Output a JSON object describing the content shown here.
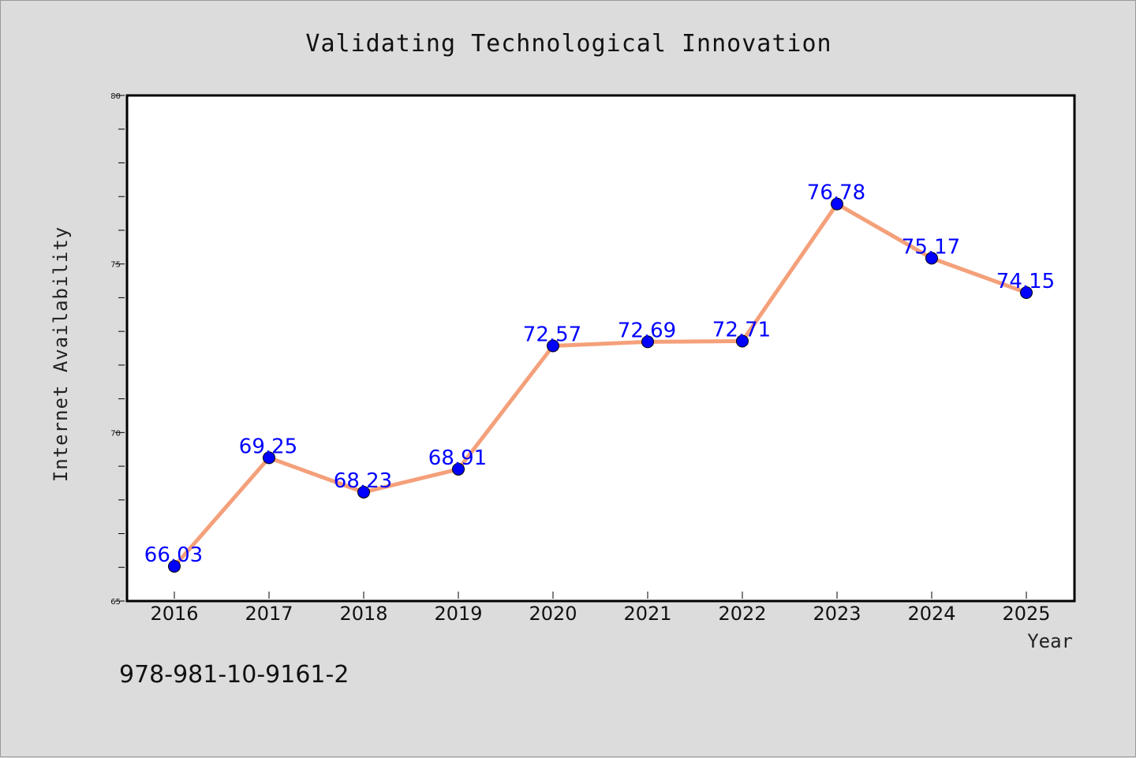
{
  "chart_data": {
    "type": "line",
    "title": "Validating Technological Innovation",
    "xlabel": "Year",
    "ylabel": "Internet Availability",
    "categories": [
      "2016",
      "2017",
      "2018",
      "2019",
      "2020",
      "2021",
      "2022",
      "2023",
      "2024",
      "2025"
    ],
    "series": [
      {
        "values": [
          66.03,
          69.25,
          68.23,
          68.91,
          72.57,
          72.69,
          72.71,
          76.78,
          75.17,
          74.15
        ]
      }
    ],
    "data_labels": [
      "66.03",
      "69.25",
      "68.23",
      "68.91",
      "72.57",
      "72.69",
      "72.71",
      "76.78",
      "75.17",
      "74.15"
    ],
    "ylim": [
      65,
      80
    ],
    "yticks": [
      "65",
      "70",
      "75",
      "80"
    ],
    "grid": false,
    "legend": "none",
    "line_color": "#f4a07a",
    "marker_color": "#0000ff",
    "label_color": "#0000ff"
  },
  "footer": {
    "isbn": "978-981-10-9161-2"
  }
}
